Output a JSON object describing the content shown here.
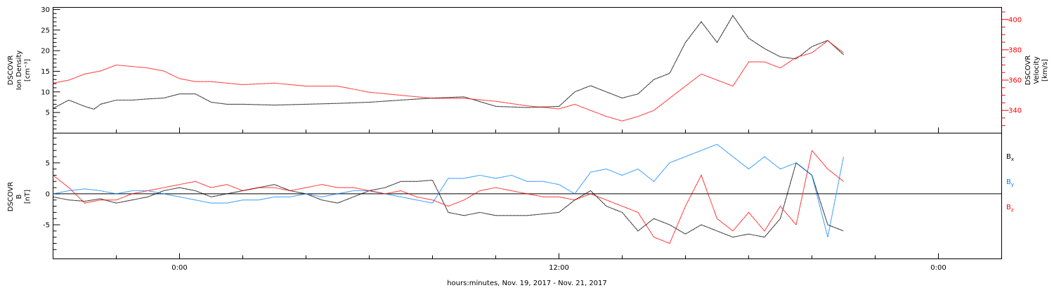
{
  "chart_data": [
    {
      "type": "line",
      "panel": "top",
      "xlabel": "hours:minutes, Nov. 19, 2017 - Nov. 21, 2017",
      "x_ticks": [
        "0:00",
        "12:00",
        "0:00"
      ],
      "x_range_hours": [
        -4,
        26
      ],
      "ylabel_left": [
        "DSCOVR",
        "Ion Density",
        "[cm⁻³]"
      ],
      "ylabel_right": [
        "DSCOVR",
        "Velocity",
        "[km/s]"
      ],
      "ylim_left": [
        0,
        30.5
      ],
      "ylim_right": [
        325,
        408
      ],
      "y_ticks_left": [
        "5",
        "10",
        "15",
        "20",
        "25",
        "30"
      ],
      "y_ticks_right": [
        "340",
        "360",
        "380",
        "400"
      ],
      "series": [
        {
          "axis": "left",
          "color": "#000000",
          "x": [
            -4,
            -3.5,
            -3,
            -2.7,
            -2.5,
            -2,
            -1.5,
            -1,
            -0.5,
            0,
            0.5,
            1,
            1.5,
            2,
            3,
            4,
            5,
            6,
            7,
            8,
            9,
            10,
            11,
            12,
            12.5,
            13,
            13.5,
            14,
            14.5,
            15,
            15.5,
            16,
            16.5,
            17,
            17.5,
            18,
            18.5,
            19,
            19.5,
            20,
            20.5,
            21
          ],
          "y": [
            6,
            8,
            6.5,
            5.8,
            7,
            8,
            8,
            8.3,
            8.5,
            9.5,
            9.5,
            7.5,
            7,
            7,
            6.8,
            7,
            7.2,
            7.5,
            8,
            8.5,
            8.8,
            6.5,
            6.2,
            6.5,
            10,
            11.5,
            10,
            8.5,
            9.5,
            13,
            14.5,
            22,
            27,
            22,
            28.5,
            23,
            20.5,
            18.5,
            18,
            21,
            22.5,
            19
          ]
        },
        {
          "axis": "right",
          "color": "#ff0000",
          "x": [
            -4,
            -3.5,
            -3,
            -2.5,
            -2,
            -1.5,
            -1,
            -0.5,
            0,
            0.5,
            1,
            2,
            3,
            4,
            5,
            6,
            7,
            8,
            9,
            10,
            11,
            11.5,
            12,
            12.5,
            13,
            13.5,
            14,
            14.5,
            15,
            15.5,
            16,
            16.5,
            17,
            17.5,
            18,
            18.5,
            19,
            19.5,
            20,
            20.5,
            21
          ],
          "y": [
            358,
            360,
            364,
            366,
            370,
            369,
            368,
            366,
            361,
            359,
            359,
            357,
            358,
            356,
            356,
            352,
            350,
            348,
            348,
            346,
            343,
            342,
            341,
            344,
            340,
            336,
            333,
            336,
            340,
            348,
            356,
            364,
            360,
            356,
            372,
            372,
            368,
            375,
            378,
            386,
            378
          ]
        }
      ]
    },
    {
      "type": "line",
      "panel": "bottom",
      "xlabel": "hours:minutes, Nov. 19, 2017 - Nov. 21, 2017",
      "ylabel": [
        "DSCOVR",
        "B",
        "[nT]"
      ],
      "ylim": [
        -10.5,
        9.8
      ],
      "y_ticks": [
        "-5",
        "0",
        "5"
      ],
      "legend": [
        "B",
        "B",
        "B"
      ],
      "legend_subscripts": [
        "x",
        "y",
        "z"
      ],
      "legend_placement": "right",
      "series": [
        {
          "name": "Bx",
          "color": "#000000",
          "x": [
            -4,
            -3.5,
            -3,
            -2.5,
            -2,
            -1.5,
            -1,
            -0.5,
            0,
            0.5,
            1,
            1.5,
            2,
            2.5,
            3,
            3.5,
            4,
            4.5,
            5,
            5.5,
            6,
            6.5,
            7,
            7.5,
            8,
            8.5,
            9,
            9.5,
            10,
            11,
            12,
            12.5,
            13,
            13.5,
            14,
            14.5,
            15,
            15.5,
            16,
            16.5,
            17,
            17.5,
            18,
            18.5,
            19,
            19.5,
            20,
            20.5,
            21
          ],
          "y": [
            -0.5,
            -1,
            -1.2,
            -0.8,
            -1.5,
            -1,
            -0.5,
            0.5,
            1,
            0.5,
            -0.5,
            0,
            0.5,
            1,
            1.5,
            0.5,
            0,
            -1,
            -1.5,
            -0.5,
            0.5,
            1,
            2,
            2,
            2.2,
            -3,
            -3.5,
            -3,
            -3.5,
            -3.5,
            -3,
            -1,
            0.5,
            -2,
            -3,
            -6,
            -4,
            -5,
            -6.5,
            -5,
            -6,
            -7,
            -6.5,
            -7,
            -4,
            5,
            3,
            -5,
            -6
          ]
        },
        {
          "name": "By",
          "color": "#0080ff",
          "x": [
            -4,
            -3.5,
            -3,
            -2.5,
            -2,
            -1.5,
            -1,
            -0.5,
            0,
            0.5,
            1,
            1.5,
            2,
            2.5,
            3,
            3.5,
            4,
            4.5,
            5,
            5.5,
            6,
            6.5,
            7,
            7.5,
            8,
            8.5,
            9,
            9.5,
            10,
            10.5,
            11,
            11.5,
            12,
            12.5,
            13,
            13.5,
            14,
            14.5,
            15,
            15.5,
            16,
            16.5,
            17,
            17.5,
            18,
            18.5,
            19,
            19.5,
            20,
            20.5,
            21
          ],
          "y": [
            0,
            0.5,
            0.8,
            0.5,
            0,
            0.5,
            0.5,
            0,
            -0.5,
            -1,
            -1.5,
            -1.5,
            -1,
            -1,
            -0.5,
            -0.5,
            0,
            -0.5,
            0,
            0.5,
            0.5,
            0,
            -0.5,
            -1,
            -1.5,
            2.5,
            2.5,
            3,
            2.5,
            3,
            2,
            2,
            1.5,
            0,
            3.5,
            4,
            3,
            4,
            2,
            5,
            6,
            7,
            8,
            6,
            4,
            6,
            4,
            5,
            3,
            -7,
            6
          ]
        },
        {
          "name": "Bz",
          "color": "#ff0000",
          "x": [
            -4,
            -3.5,
            -3,
            -2.5,
            -2,
            -1.5,
            -1,
            -0.5,
            0,
            0.5,
            1,
            1.5,
            2,
            2.5,
            3,
            3.5,
            4,
            4.5,
            5,
            5.5,
            6,
            6.5,
            7,
            7.5,
            8,
            8.5,
            9,
            9.5,
            10,
            10.5,
            11,
            11.5,
            12,
            12.5,
            13,
            13.5,
            14,
            14.5,
            15,
            15.5,
            16,
            16.5,
            17,
            17.5,
            18,
            18.5,
            19,
            19.5,
            20,
            20.5,
            21
          ],
          "y": [
            3,
            1,
            -1.5,
            -1,
            -1,
            0,
            0.5,
            1,
            1.5,
            2,
            1,
            1.5,
            0.5,
            1,
            1,
            0.5,
            1,
            1.5,
            1,
            1,
            0.5,
            0,
            0.5,
            -0.5,
            -1,
            -2,
            -1,
            0.5,
            1,
            0.5,
            0,
            -0.5,
            -0.5,
            -1,
            0,
            -1,
            -2,
            -3,
            -7,
            -8,
            -2,
            3,
            -4,
            -6,
            -3,
            -6,
            -2,
            -5,
            7,
            4,
            2
          ]
        }
      ]
    }
  ]
}
